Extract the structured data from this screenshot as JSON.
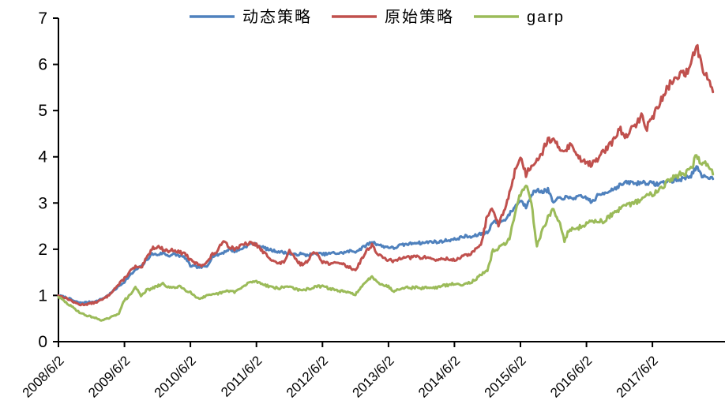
{
  "chart_data": {
    "type": "line",
    "title": "",
    "xlabel": "",
    "ylabel": "",
    "ylim": [
      0,
      7
    ],
    "y_ticks": [
      "0",
      "1",
      "2",
      "3",
      "4",
      "5",
      "6",
      "7"
    ],
    "x_tick_labels": [
      "2008/6/2",
      "2009/6/2",
      "2010/6/2",
      "2011/6/2",
      "2012/6/2",
      "2013/6/2",
      "2014/6/2",
      "2015/6/2",
      "2016/6/2",
      "2017/6/2"
    ],
    "x_start": "2008/6",
    "x_interval": "monthly",
    "grid": false,
    "legend_position": "top",
    "series": [
      {
        "name": "动态策略",
        "color": "#4F81BD",
        "values": [
          1.0,
          0.97,
          0.93,
          0.87,
          0.84,
          0.85,
          0.86,
          0.88,
          0.93,
          1.0,
          1.1,
          1.2,
          1.3,
          1.43,
          1.55,
          1.62,
          1.76,
          1.9,
          1.88,
          1.92,
          1.86,
          1.89,
          1.86,
          1.82,
          1.64,
          1.62,
          1.61,
          1.63,
          1.85,
          1.88,
          1.93,
          2.0,
          1.96,
          1.99,
          2.06,
          2.12,
          2.1,
          2.05,
          2.0,
          1.97,
          1.95,
          1.93,
          1.9,
          1.88,
          1.9,
          1.87,
          1.89,
          1.91,
          1.89,
          1.9,
          1.92,
          1.91,
          1.93,
          1.96,
          1.95,
          2.01,
          2.09,
          2.16,
          2.11,
          2.06,
          2.05,
          2.02,
          2.08,
          2.1,
          2.12,
          2.15,
          2.13,
          2.15,
          2.17,
          2.15,
          2.18,
          2.2,
          2.21,
          2.25,
          2.28,
          2.26,
          2.3,
          2.34,
          2.36,
          2.6,
          2.58,
          2.62,
          2.76,
          2.92,
          3.06,
          2.92,
          3.2,
          3.27,
          3.25,
          3.28,
          3.0,
          3.1,
          3.12,
          3.1,
          3.12,
          3.13,
          3.12,
          3.01,
          3.15,
          3.21,
          3.26,
          3.31,
          3.38,
          3.43,
          3.45,
          3.42,
          3.45,
          3.44,
          3.42,
          3.41,
          3.45,
          3.47,
          3.49,
          3.51,
          3.55,
          3.6,
          3.78,
          3.56,
          3.58,
          3.52
        ]
      },
      {
        "name": "原始策略",
        "color": "#C0504D",
        "values": [
          1.0,
          0.96,
          0.91,
          0.84,
          0.8,
          0.81,
          0.83,
          0.86,
          0.91,
          0.99,
          1.12,
          1.24,
          1.37,
          1.52,
          1.62,
          1.58,
          1.8,
          2.02,
          2.06,
          2.0,
          1.96,
          1.99,
          1.93,
          1.91,
          1.76,
          1.69,
          1.66,
          1.71,
          1.89,
          1.96,
          2.21,
          2.06,
          2.01,
          2.06,
          2.11,
          2.13,
          2.1,
          1.96,
          1.86,
          1.76,
          1.68,
          1.73,
          1.95,
          1.8,
          1.67,
          1.71,
          1.88,
          1.93,
          1.73,
          1.7,
          1.68,
          1.72,
          1.66,
          1.6,
          1.55,
          1.76,
          1.96,
          2.1,
          1.9,
          1.81,
          1.77,
          1.73,
          1.8,
          1.85,
          1.81,
          1.85,
          1.81,
          1.83,
          1.79,
          1.76,
          1.8,
          1.78,
          1.76,
          1.82,
          1.86,
          1.91,
          2.0,
          2.16,
          2.76,
          2.85,
          2.52,
          2.82,
          3.2,
          3.7,
          4.0,
          3.62,
          3.82,
          3.95,
          4.1,
          4.4,
          4.33,
          4.2,
          4.14,
          4.26,
          4.1,
          3.95,
          3.9,
          3.82,
          3.96,
          4.1,
          4.21,
          4.36,
          4.63,
          4.4,
          4.56,
          4.7,
          4.88,
          4.64,
          4.85,
          5.1,
          5.3,
          5.55,
          5.66,
          5.8,
          5.76,
          6.05,
          6.45,
          5.95,
          5.76,
          5.4
        ]
      },
      {
        "name": "garp",
        "color": "#9BBB59",
        "values": [
          0.97,
          0.88,
          0.79,
          0.71,
          0.62,
          0.57,
          0.54,
          0.5,
          0.46,
          0.5,
          0.55,
          0.62,
          0.9,
          1.0,
          1.18,
          1.0,
          1.11,
          1.15,
          1.2,
          1.25,
          1.18,
          1.16,
          1.21,
          1.12,
          1.08,
          0.96,
          0.94,
          0.99,
          1.01,
          1.04,
          1.07,
          1.1,
          1.08,
          1.14,
          1.22,
          1.3,
          1.3,
          1.26,
          1.21,
          1.18,
          1.15,
          1.18,
          1.2,
          1.15,
          1.1,
          1.13,
          1.16,
          1.19,
          1.2,
          1.16,
          1.13,
          1.1,
          1.08,
          1.05,
          1.03,
          1.16,
          1.3,
          1.42,
          1.3,
          1.23,
          1.19,
          1.09,
          1.15,
          1.18,
          1.16,
          1.18,
          1.15,
          1.18,
          1.16,
          1.18,
          1.21,
          1.23,
          1.25,
          1.23,
          1.26,
          1.29,
          1.36,
          1.46,
          1.52,
          1.98,
          2.02,
          2.1,
          2.21,
          2.8,
          3.2,
          3.4,
          3.0,
          2.06,
          2.4,
          2.7,
          2.85,
          2.6,
          2.2,
          2.45,
          2.4,
          2.5,
          2.55,
          2.6,
          2.62,
          2.6,
          2.7,
          2.78,
          2.85,
          2.92,
          2.98,
          3.02,
          3.09,
          3.15,
          3.2,
          3.3,
          3.38,
          3.5,
          3.55,
          3.62,
          3.66,
          3.72,
          4.03,
          3.82,
          3.88,
          3.62
        ]
      }
    ]
  }
}
